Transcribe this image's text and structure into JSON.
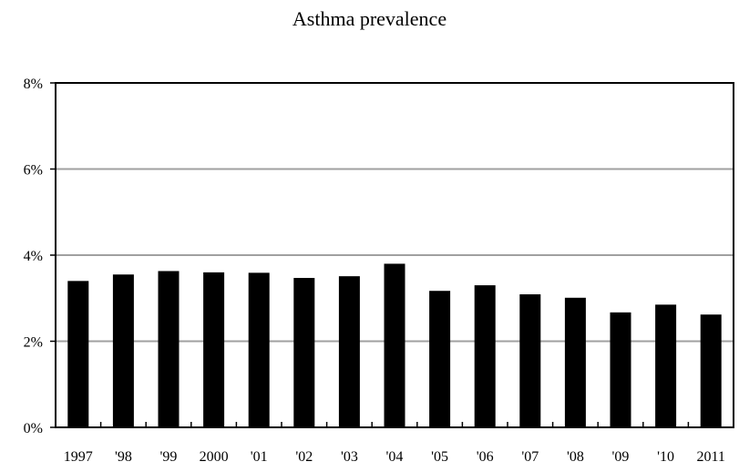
{
  "chart_data": {
    "type": "bar",
    "title": "Asthma prevalence",
    "xlabel": "",
    "ylabel": "",
    "categories": [
      "1997",
      "'98",
      "'99",
      "2000",
      "'01",
      "'02",
      "'03",
      "'04",
      "'05",
      "'06",
      "'07",
      "'08",
      "'09",
      "'10",
      "2011"
    ],
    "values": [
      3.4,
      3.55,
      3.63,
      3.6,
      3.59,
      3.47,
      3.51,
      3.8,
      3.17,
      3.3,
      3.09,
      3.01,
      2.67,
      2.85,
      2.62
    ],
    "ylim": [
      0,
      8
    ],
    "yticks": [
      0,
      2,
      4,
      6,
      8
    ],
    "ytick_labels": [
      "0%",
      "2%",
      "4%",
      "6%",
      "8%"
    ],
    "grid": true,
    "bar_color": "#000000",
    "grid_color": "#a0a0a0"
  }
}
